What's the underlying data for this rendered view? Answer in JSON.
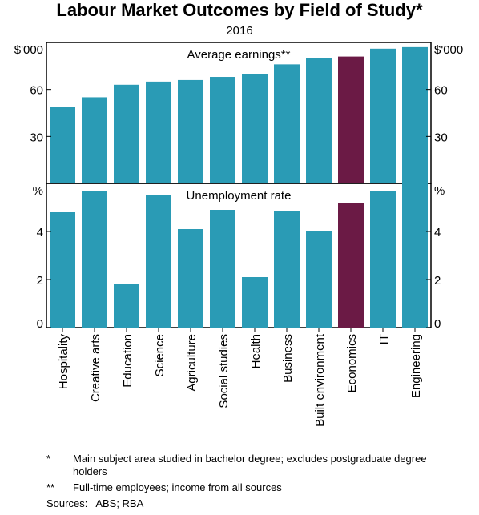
{
  "title": "Labour Market Outcomes by Field of Study*",
  "subtitle": "2016",
  "chart_data": {
    "type": "bar",
    "categories": [
      "Hospitality",
      "Creative arts",
      "Education",
      "Science",
      "Agriculture",
      "Social studies",
      "Health",
      "Business",
      "Built environment",
      "Economics",
      "IT",
      "Engineering"
    ],
    "highlight_category": "Economics",
    "colors": {
      "bar": "#2a9bb5",
      "highlight": "#6b1a45"
    },
    "panels": [
      {
        "title": "Average earnings**",
        "unit_label": "$'000",
        "ylim": [
          0,
          90
        ],
        "yticks": [
          30,
          60
        ],
        "values": [
          49,
          55,
          63,
          65,
          66,
          68,
          70,
          76,
          80,
          81,
          86,
          87
        ]
      },
      {
        "title": "Unemployment rate",
        "unit_label": "%",
        "ylim": [
          0,
          6
        ],
        "yticks": [
          0,
          2,
          4
        ],
        "values": [
          4.8,
          5.7,
          1.8,
          5.5,
          4.1,
          4.9,
          2.1,
          4.85,
          4.0,
          5.2,
          5.7,
          6.0
        ]
      }
    ]
  },
  "notes": [
    {
      "mark": "*",
      "text": "Main subject area studied in bachelor degree; excludes postgraduate degree holders"
    },
    {
      "mark": "**",
      "text": "Full-time employees; income from all sources"
    }
  ],
  "sources": {
    "label": "Sources:",
    "text": "ABS; RBA"
  }
}
